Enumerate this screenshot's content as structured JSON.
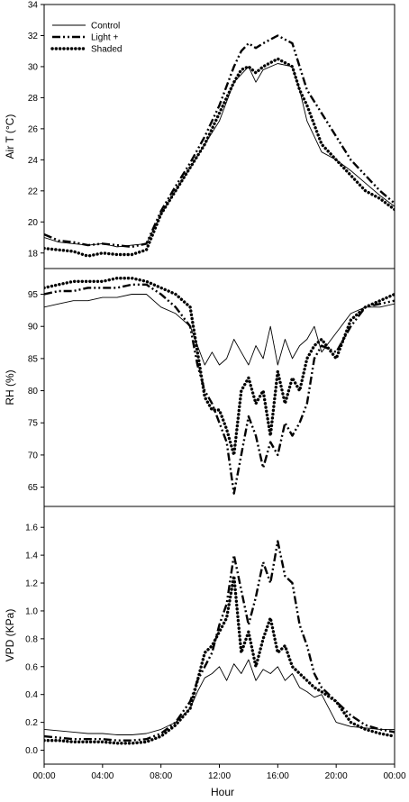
{
  "chart_data": {
    "type": "line",
    "xlabel": "Hour",
    "x_ticks": [
      "00:00",
      "04:00",
      "08:00",
      "12:00",
      "16:00",
      "20:00",
      "00:00"
    ],
    "xlim": [
      0,
      24
    ],
    "legend": {
      "placement": "top-left",
      "entries": [
        {
          "name": "Control",
          "style": "solid-thin"
        },
        {
          "name": "Light +",
          "style": "dash-dot-thick"
        },
        {
          "name": "Shaded",
          "style": "dotted-thick"
        }
      ]
    },
    "panels": [
      {
        "ylabel": "Air T (°C)",
        "ylim": [
          17,
          34
        ],
        "yticks": [
          18,
          20,
          22,
          24,
          26,
          28,
          30,
          32,
          34
        ],
        "ytick_labels": [
          "18",
          "20",
          "22",
          "24",
          "26",
          "28",
          "30",
          "32",
          "34"
        ],
        "series": [
          {
            "name": "Control",
            "x": [
              0,
              1,
              2,
              3,
              4,
              5,
              6,
              7,
              8,
              9,
              10,
              11,
              12,
              13,
              13.5,
              14,
              14.5,
              15,
              16,
              17,
              17.5,
              18,
              19,
              20,
              21,
              22,
              23,
              24
            ],
            "values": [
              19.0,
              18.7,
              18.6,
              18.5,
              18.6,
              18.4,
              18.5,
              18.6,
              20.5,
              22.0,
              23.5,
              25.0,
              26.5,
              29.0,
              29.5,
              30.0,
              29.0,
              29.8,
              30.2,
              30.0,
              28.5,
              26.5,
              24.5,
              24.0,
              23.3,
              22.5,
              21.7,
              21.0
            ]
          },
          {
            "name": "Light +",
            "x": [
              0,
              1,
              2,
              3,
              4,
              5,
              6,
              7,
              8,
              9,
              10,
              11,
              12,
              13,
              13.5,
              14,
              14.5,
              15,
              16,
              17,
              17.5,
              18,
              19,
              20,
              21,
              22,
              23,
              24
            ],
            "values": [
              19.2,
              18.8,
              18.7,
              18.5,
              18.6,
              18.5,
              18.4,
              18.6,
              20.7,
              22.3,
              23.8,
              25.5,
              27.5,
              30.0,
              31.0,
              31.5,
              31.2,
              31.5,
              32.0,
              31.5,
              30.0,
              28.5,
              27.0,
              25.5,
              24.0,
              23.0,
              22.0,
              21.2
            ]
          },
          {
            "name": "Shaded",
            "x": [
              0,
              1,
              2,
              3,
              4,
              5,
              6,
              7,
              8,
              9,
              10,
              11,
              12,
              13,
              13.5,
              14,
              14.5,
              15,
              16,
              17,
              17.5,
              18,
              19,
              20,
              21,
              22,
              23,
              24
            ],
            "values": [
              18.3,
              18.2,
              18.1,
              17.8,
              18.0,
              17.9,
              17.9,
              18.2,
              20.5,
              22.0,
              23.5,
              25.0,
              27.0,
              29.0,
              29.8,
              30.0,
              29.6,
              30.0,
              30.5,
              30.0,
              28.5,
              27.5,
              25.0,
              24.0,
              23.0,
              22.0,
              21.5,
              20.8
            ]
          }
        ]
      },
      {
        "ylabel": "RH (%)",
        "ylim": [
          62,
          99
        ],
        "yticks": [
          65,
          70,
          75,
          80,
          85,
          90,
          95
        ],
        "ytick_labels": [
          "65",
          "70",
          "75",
          "80",
          "85",
          "90",
          "95"
        ],
        "series": [
          {
            "name": "Control",
            "x": [
              0,
              1,
              2,
              3,
              4,
              5,
              6,
              7,
              8,
              9,
              10,
              10.5,
              11,
              11.5,
              12,
              12.5,
              13,
              13.5,
              14,
              14.5,
              15,
              15.5,
              16,
              16.5,
              17,
              17.5,
              18,
              18.5,
              19,
              20,
              21,
              22,
              23,
              24
            ],
            "values": [
              93,
              93.5,
              94,
              94,
              94.5,
              94.5,
              95,
              95,
              93,
              92,
              90,
              87,
              84,
              86,
              84,
              85,
              88,
              86,
              84,
              87,
              85,
              90,
              84,
              88,
              85,
              87,
              88,
              90,
              86,
              89,
              92,
              93,
              93,
              93.5
            ]
          },
          {
            "name": "Light +",
            "x": [
              0,
              1,
              2,
              3,
              4,
              5,
              6,
              7,
              8,
              9,
              10,
              10.5,
              11,
              11.5,
              12,
              12.5,
              13,
              13.5,
              14,
              14.5,
              15,
              15.5,
              16,
              16.5,
              17,
              17.5,
              18,
              18.5,
              19,
              20,
              21,
              22,
              23,
              24
            ],
            "values": [
              95,
              95.5,
              95.5,
              96,
              96,
              96,
              96.5,
              96.5,
              95,
              93,
              90,
              84,
              80,
              78,
              75,
              72,
              64,
              70,
              76,
              73,
              68,
              72,
              70,
              75,
              73,
              75,
              78,
              85,
              87,
              86,
              90,
              93,
              93.5,
              94
            ]
          },
          {
            "name": "Shaded",
            "x": [
              0,
              1,
              2,
              3,
              4,
              5,
              6,
              7,
              8,
              9,
              10,
              10.5,
              11,
              11.5,
              12,
              12.5,
              13,
              13.5,
              14,
              14.5,
              15,
              15.5,
              16,
              16.5,
              17,
              17.5,
              18,
              18.5,
              19,
              20,
              21,
              22,
              23,
              24
            ],
            "values": [
              96,
              96.5,
              97,
              97,
              97,
              97.5,
              97.5,
              97,
              96,
              95,
              93,
              86,
              79,
              77,
              77,
              74,
              70,
              80,
              82,
              78,
              80,
              73,
              83,
              78,
              82,
              80,
              85,
              87,
              88,
              85,
              91,
              93,
              94,
              95
            ]
          }
        ]
      },
      {
        "ylabel": "VPD (KPa)",
        "ylim": [
          -0.1,
          1.75
        ],
        "yticks": [
          0.0,
          0.2,
          0.4,
          0.6,
          0.8,
          1.0,
          1.2,
          1.4,
          1.6
        ],
        "ytick_labels": [
          "0.0",
          "0.2",
          "0.4",
          "0.6",
          "0.8",
          "1.0",
          "1.2",
          "1.4",
          "1.6"
        ],
        "series": [
          {
            "name": "Control",
            "x": [
              0,
              1,
              2,
              3,
              4,
              5,
              6,
              7,
              8,
              9,
              10,
              10.5,
              11,
              11.5,
              12,
              12.5,
              13,
              13.5,
              14,
              14.5,
              15,
              15.5,
              16,
              16.5,
              17,
              17.5,
              18,
              18.5,
              19,
              20,
              21,
              22,
              23,
              24
            ],
            "values": [
              0.15,
              0.14,
              0.13,
              0.12,
              0.12,
              0.11,
              0.11,
              0.12,
              0.15,
              0.2,
              0.3,
              0.42,
              0.52,
              0.55,
              0.6,
              0.5,
              0.62,
              0.55,
              0.65,
              0.5,
              0.58,
              0.55,
              0.6,
              0.5,
              0.55,
              0.45,
              0.42,
              0.38,
              0.4,
              0.2,
              0.17,
              0.16,
              0.15,
              0.15
            ]
          },
          {
            "name": "Light +",
            "x": [
              0,
              1,
              2,
              3,
              4,
              5,
              6,
              7,
              8,
              9,
              10,
              10.5,
              11,
              11.5,
              12,
              12.5,
              13,
              13.5,
              14,
              14.5,
              15,
              15.5,
              16,
              16.5,
              17,
              17.5,
              18,
              18.5,
              19,
              20,
              21,
              22,
              23,
              24
            ],
            "values": [
              0.1,
              0.09,
              0.08,
              0.08,
              0.08,
              0.07,
              0.07,
              0.08,
              0.12,
              0.2,
              0.35,
              0.5,
              0.6,
              0.7,
              0.9,
              1.05,
              1.4,
              1.15,
              0.9,
              1.1,
              1.35,
              1.2,
              1.5,
              1.25,
              1.2,
              0.9,
              0.75,
              0.55,
              0.45,
              0.35,
              0.25,
              0.18,
              0.15,
              0.13
            ]
          },
          {
            "name": "Shaded",
            "x": [
              0,
              1,
              2,
              3,
              4,
              5,
              6,
              7,
              8,
              9,
              10,
              10.5,
              11,
              11.5,
              12,
              12.5,
              13,
              13.5,
              14,
              14.5,
              15,
              15.5,
              16,
              16.5,
              17,
              17.5,
              18,
              18.5,
              19,
              20,
              21,
              22,
              23,
              24
            ],
            "values": [
              0.07,
              0.07,
              0.06,
              0.06,
              0.06,
              0.05,
              0.05,
              0.06,
              0.1,
              0.18,
              0.3,
              0.5,
              0.7,
              0.75,
              0.85,
              0.95,
              1.25,
              0.7,
              0.85,
              0.6,
              0.8,
              0.95,
              0.7,
              0.75,
              0.6,
              0.55,
              0.5,
              0.45,
              0.42,
              0.35,
              0.2,
              0.15,
              0.12,
              0.1
            ]
          }
        ]
      }
    ]
  }
}
